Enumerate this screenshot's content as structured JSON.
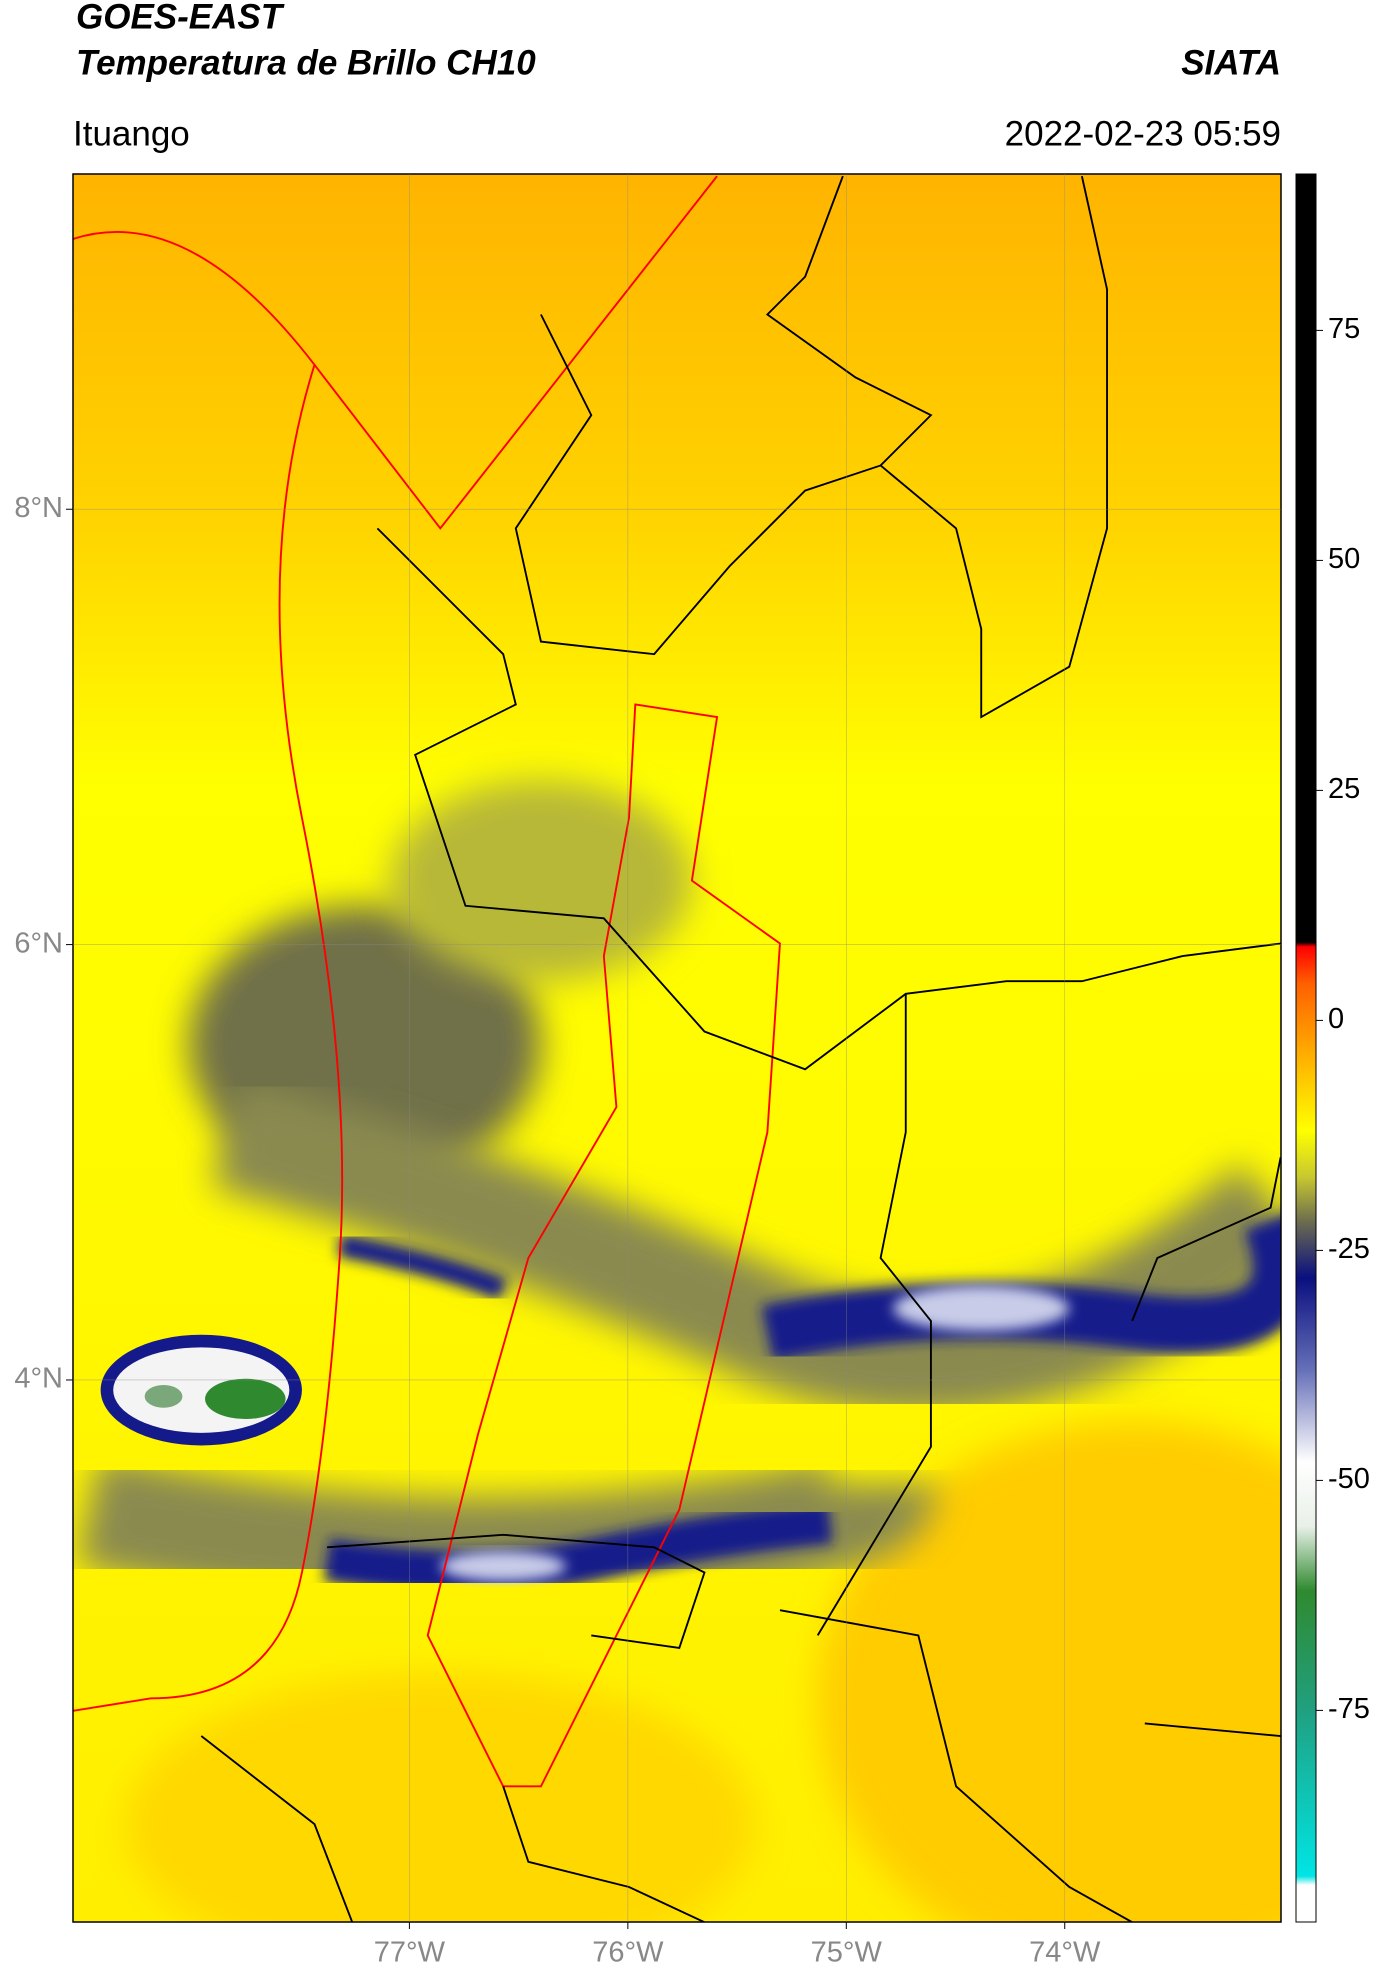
{
  "header": {
    "title_line1": "GOES-EAST",
    "title_line2": "Temperatura de Brillo CH10",
    "source": "SIATA",
    "location": "Ituango",
    "datetime": "2022-02-23 05:59"
  },
  "map": {
    "xlim": [
      -78.54,
      -73.01
    ],
    "ylim": [
      1.51,
      9.54
    ],
    "xticks": [
      {
        "value": -77,
        "label": "77°W"
      },
      {
        "value": -76,
        "label": "76°W"
      },
      {
        "value": -75,
        "label": "75°W"
      },
      {
        "value": -74,
        "label": "74°W"
      }
    ],
    "yticks": [
      {
        "value": 8,
        "label": "8°N"
      },
      {
        "value": 6,
        "label": "6°N"
      },
      {
        "value": 4,
        "label": "4°N"
      }
    ],
    "grid": true
  },
  "colorbar": {
    "lim": [
      -98,
      92
    ],
    "ticks": [
      75,
      50,
      25,
      0,
      -25,
      -50,
      -75
    ],
    "stops": [
      {
        "value": -98,
        "color": "#ffffff"
      },
      {
        "value": -94,
        "color": "#ffffff"
      },
      {
        "value": -93,
        "color": "#00e5e5"
      },
      {
        "value": -75,
        "color": "#20a080"
      },
      {
        "value": -62,
        "color": "#2f8a2f"
      },
      {
        "value": -55,
        "color": "#e8f0e8"
      },
      {
        "value": -48,
        "color": "#ffffff"
      },
      {
        "value": -38,
        "color": "#6670b8"
      },
      {
        "value": -28,
        "color": "#0a0f80"
      },
      {
        "value": -22,
        "color": "#6a6a50"
      },
      {
        "value": -17,
        "color": "#c8c830"
      },
      {
        "value": -12,
        "color": "#ffff00"
      },
      {
        "value": -4,
        "color": "#ffb000"
      },
      {
        "value": 4,
        "color": "#ff6000"
      },
      {
        "value": 8,
        "color": "#ff0000"
      },
      {
        "value": 8.5,
        "color": "#000000"
      },
      {
        "value": 92,
        "color": "#000000"
      }
    ]
  }
}
